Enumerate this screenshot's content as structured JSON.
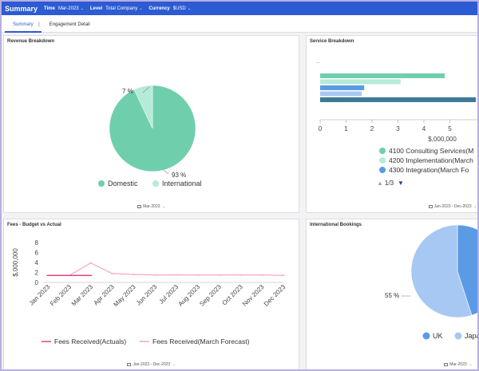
{
  "header": {
    "title": "Summary",
    "time_label": "Time",
    "time_value": "Mar-2023",
    "level_label": "Level",
    "level_value": "Total Company",
    "currency_label": "Currency",
    "currency_value": "$USD"
  },
  "tabs": [
    {
      "label": "Summary"
    },
    {
      "label": "Engagement Detail"
    }
  ],
  "panels": {
    "revenue": {
      "title": "Revenue Breakdown",
      "footer": "Mar-2023"
    },
    "service": {
      "title": "Service Breakdown",
      "footer": "Jan-2023 - Dec-2023",
      "pager": "1/3"
    },
    "fees": {
      "title": "Fees - Budget vs Actual",
      "footer": "Jan-2023 - Dec-2023"
    },
    "intl": {
      "title": "International Bookings",
      "footer": "Mar-2023"
    }
  },
  "colors": {
    "header_bg": "#2c5bd3",
    "domestic": "#6fcfad",
    "international": "#b6ead9",
    "bar_green": "#6fcfad",
    "bar_light_green": "#b6ead9",
    "bar_blue": "#5b9be6",
    "bar_light_blue": "#a7c8f2",
    "bar_dark": "#3d7a95",
    "line_actual": "#e0457f",
    "line_forecast": "#f4a6c5",
    "uk": "#5b9be6",
    "japan": "#a7c8f2"
  },
  "chart_data": [
    {
      "id": "revenue",
      "type": "pie",
      "labels": [
        "Domestic",
        "International"
      ],
      "values": [
        93,
        7
      ],
      "data_labels": [
        "93 %",
        "7 %"
      ],
      "legend": "bottom"
    },
    {
      "id": "service",
      "type": "bar",
      "orientation": "horizontal",
      "categories": [
        "",
        "",
        "",
        "",
        ""
      ],
      "values": [
        4.8,
        3.1,
        1.7,
        1.6,
        6.0
      ],
      "xlim": [
        0,
        6
      ],
      "xticks": [
        "0",
        "1",
        "2",
        "3",
        "4",
        "5"
      ],
      "xlabel": "$,000,000",
      "top_label": "...",
      "legend": [
        "4100 Consulting Services(M",
        "4200 Implementation(March",
        "4300 Integration(March Fo"
      ],
      "legend_placement": "bottom"
    },
    {
      "id": "fees",
      "type": "line",
      "categories": [
        "Jan 2023",
        "Feb 2023",
        "Mar 2023",
        "Apr 2023",
        "May 2023",
        "Jun 2023",
        "Jul 2023",
        "Aug 2023",
        "Sep 2023",
        "Oct 2023",
        "Nov 2023",
        "Dec 2023"
      ],
      "ylabel": "$,000,000",
      "ylim": [
        0,
        8
      ],
      "yticks": [
        "0",
        "2",
        "4",
        "6",
        "8"
      ],
      "series": [
        {
          "name": "Fees Received(Actuals)",
          "values": [
            1.4,
            1.4,
            1.4,
            null,
            null,
            null,
            null,
            null,
            null,
            null,
            null,
            null
          ]
        },
        {
          "name": "Fees Received(March Forecast)",
          "values": [
            1.4,
            1.4,
            3.9,
            1.8,
            1.6,
            1.5,
            1.5,
            1.5,
            1.5,
            1.5,
            1.5,
            1.4
          ]
        }
      ],
      "legend": "bottom"
    },
    {
      "id": "intl",
      "type": "pie",
      "labels": [
        "UK",
        "Japa"
      ],
      "values": [
        45,
        55
      ],
      "data_labels": [
        "55 %"
      ],
      "legend": "bottom"
    }
  ]
}
